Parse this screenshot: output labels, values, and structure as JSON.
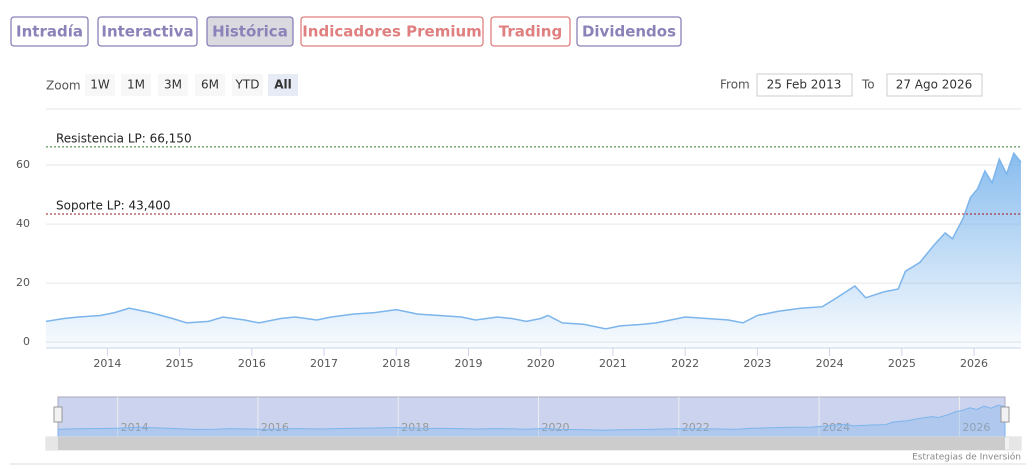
{
  "tabs": [
    {
      "label": "Intradía",
      "color": "#8a82b8"
    },
    {
      "label": "Interactiva",
      "color": "#8a82b8"
    },
    {
      "label": "Histórica",
      "color": "#8a82b8",
      "active": true
    },
    {
      "label": "Indicadores Premium",
      "color": "#e07f7f"
    },
    {
      "label": "Trading",
      "color": "#e07f7f"
    },
    {
      "label": "Dividendos",
      "color": "#8a82b8"
    }
  ],
  "zoom": {
    "label": "Zoom",
    "buttons": [
      "1W",
      "1M",
      "3M",
      "6M",
      "YTD",
      "All"
    ],
    "selected": 5
  },
  "range": {
    "from_label": "From",
    "from": "25 Feb 2013",
    "to_label": "To",
    "to": "27 Ago 2026"
  },
  "credit": "Estrategias de Inversión",
  "chart_data": {
    "type": "area",
    "color": "#7cb5ec",
    "x": [
      2013.15,
      2013.4,
      2013.6,
      2013.9,
      2014.1,
      2014.3,
      2014.6,
      2014.9,
      2015.1,
      2015.4,
      2015.6,
      2015.9,
      2016.1,
      2016.4,
      2016.6,
      2016.9,
      2017.1,
      2017.4,
      2017.7,
      2018.0,
      2018.3,
      2018.6,
      2018.9,
      2019.1,
      2019.4,
      2019.6,
      2019.8,
      2020.0,
      2020.1,
      2020.3,
      2020.6,
      2020.9,
      2021.1,
      2021.4,
      2021.6,
      2021.8,
      2022.0,
      2022.3,
      2022.6,
      2022.8,
      2023.0,
      2023.3,
      2023.6,
      2023.9,
      2024.1,
      2024.35,
      2024.5,
      2024.75,
      2024.95,
      2025.05,
      2025.25,
      2025.45,
      2025.6,
      2025.7,
      2025.85,
      2025.95,
      2026.05,
      2026.15,
      2026.25,
      2026.35,
      2026.45,
      2026.55,
      2026.65
    ],
    "values": [
      7,
      8,
      8.5,
      9,
      10,
      11.5,
      10,
      8,
      6.5,
      7,
      8.5,
      7.5,
      6.5,
      8,
      8.5,
      7.5,
      8.5,
      9.5,
      10,
      11,
      9.5,
      9,
      8.5,
      7.5,
      8.5,
      8,
      7,
      8,
      9,
      6.5,
      6,
      4.5,
      5.5,
      6,
      6.5,
      7.5,
      8.5,
      8,
      7.5,
      6.5,
      9,
      10.5,
      11.5,
      12,
      15,
      19,
      15,
      17,
      18,
      24,
      27,
      33,
      37,
      35,
      42,
      49,
      52,
      58,
      54,
      62,
      57,
      64,
      61
    ],
    "xlim": [
      2013.15,
      2026.65
    ],
    "xticks": [
      2014,
      2015,
      2016,
      2017,
      2018,
      2019,
      2020,
      2021,
      2022,
      2023,
      2024,
      2025,
      2026
    ],
    "ylim": [
      -2,
      79
    ],
    "yticks": [
      0,
      20,
      40,
      60
    ],
    "grid": true,
    "plot_lines": [
      {
        "value": 66.15,
        "label": "Resistencia LP: 66,150",
        "color": "#2e7d32"
      },
      {
        "value": 43.4,
        "label": "Soporte LP: 43,400",
        "color": "#a01818"
      }
    ],
    "navigator_ticks": [
      2014,
      2016,
      2018,
      2020,
      2022,
      2024,
      2026
    ]
  }
}
